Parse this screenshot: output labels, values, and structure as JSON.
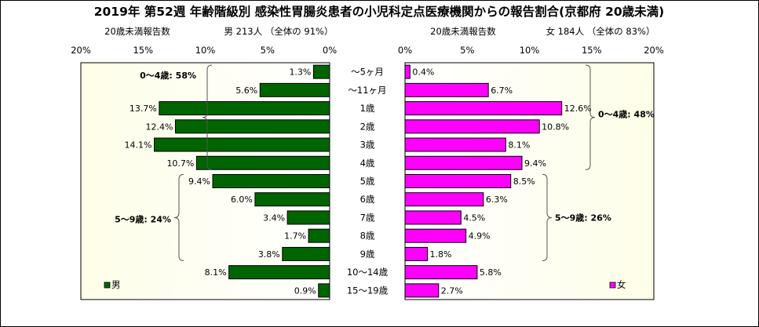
{
  "chart_data": {
    "type": "bar",
    "title": "2019年 第52週 年齢階級別 感染性胃腸炎患者の小児科定点医療機関からの報告割合(京都府 20歳未満)",
    "categories": [
      "～5ヶ月",
      "～11ヶ月",
      "1歳",
      "2歳",
      "3歳",
      "4歳",
      "5歳",
      "6歳",
      "7歳",
      "8歳",
      "9歳",
      "10～14歳",
      "15～19歳"
    ],
    "value_format": "%",
    "xlim": [
      0,
      20
    ],
    "tick_labels": [
      "0%",
      "5%",
      "10%",
      "15%",
      "20%"
    ],
    "series": [
      {
        "name": "男",
        "color": "#006400",
        "header_left": "20歳未満報告数",
        "header_right": "男  213人 （全体の  91%）",
        "values": [
          1.3,
          5.6,
          13.7,
          12.4,
          14.1,
          10.7,
          9.4,
          6.0,
          3.4,
          1.7,
          3.8,
          8.1,
          0.9
        ],
        "value_labels": [
          "1.3%",
          "5.6%",
          "13.7%",
          "12.4%",
          "14.1%",
          "10.7%",
          "9.4%",
          "6.0%",
          "3.4%",
          "1.7%",
          "3.8%",
          "8.1%",
          "0.9%"
        ],
        "group_labels": [
          "0～4歳: 58%",
          "5～9歳: 24%"
        ]
      },
      {
        "name": "女",
        "color": "#ff00ff",
        "header_left": "20歳未満報告数",
        "header_right": "女  184人 （全体の  83%）",
        "values": [
          0.4,
          6.7,
          12.6,
          10.8,
          8.1,
          9.4,
          8.5,
          6.3,
          4.5,
          4.9,
          1.8,
          5.8,
          2.7
        ],
        "value_labels": [
          "0.4%",
          "6.7%",
          "12.6%",
          "10.8%",
          "8.1%",
          "9.4%",
          "8.5%",
          "6.3%",
          "4.5%",
          "4.9%",
          "1.8%",
          "5.8%",
          "2.7%"
        ],
        "group_labels": [
          "0～4歳: 48%",
          "5～9歳: 26%"
        ]
      }
    ]
  }
}
